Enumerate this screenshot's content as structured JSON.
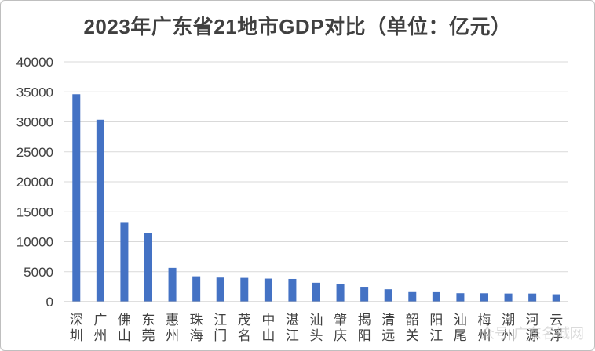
{
  "chart_data": {
    "type": "bar",
    "title": "2023年广东省21地市GDP对比（单位：亿元）",
    "categories": [
      "深圳",
      "广州",
      "佛山",
      "东莞",
      "惠州",
      "珠海",
      "江门",
      "茂名",
      "中山",
      "湛江",
      "汕头",
      "肇庆",
      "揭阳",
      "清远",
      "韶关",
      "阳江",
      "汕尾",
      "梅州",
      "潮州",
      "河源",
      "云浮"
    ],
    "values": [
      34606,
      30355,
      13276,
      11438,
      5639,
      4233,
      4022,
      3974,
      3850,
      3794,
      3158,
      2892,
      2479,
      2068,
      1597,
      1581,
      1410,
      1400,
      1356,
      1352,
      1234
    ],
    "ylim": [
      0,
      40000
    ],
    "yticks": [
      0,
      5000,
      10000,
      15000,
      20000,
      25000,
      30000,
      35000,
      40000
    ],
    "grid": true,
    "bar_color": "#4472c4",
    "gridline_color": "#d9d9d9"
  },
  "watermark": "众号·广东名城网"
}
